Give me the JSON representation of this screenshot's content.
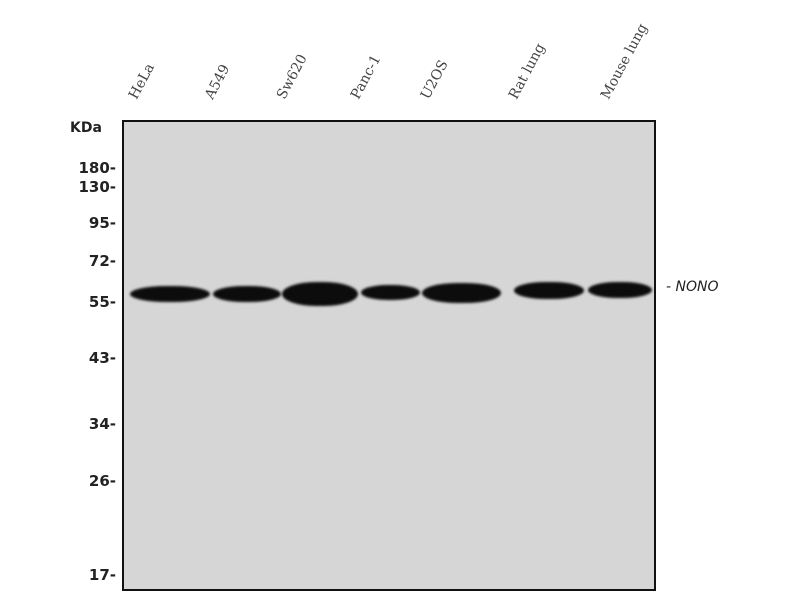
{
  "lanes": [
    "HeLa",
    "A549",
    "Sw620",
    "Panc-1",
    "U2OS",
    "Rat lung",
    "Mouse lung"
  ],
  "unit_label": "KDa",
  "markers": [
    "180-",
    "130-",
    "95-",
    "72-",
    "55-",
    "43-",
    "34-",
    "26-",
    "17-"
  ],
  "target_label": "- NONO",
  "colors": {
    "membrane": "#d6d6d6",
    "band": "#0c0c0c"
  }
}
